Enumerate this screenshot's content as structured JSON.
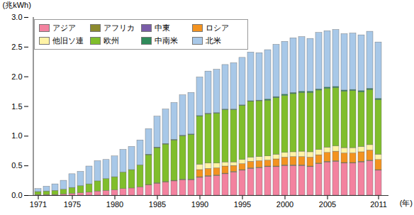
{
  "chart_data": {
    "type": "bar",
    "stacked": true,
    "y_label": "(兆kWh)",
    "x_label": "(年)",
    "x": [
      1971,
      1972,
      1973,
      1974,
      1975,
      1976,
      1977,
      1978,
      1979,
      1980,
      1981,
      1982,
      1983,
      1984,
      1985,
      1986,
      1987,
      1988,
      1989,
      1990,
      1991,
      1992,
      1993,
      1994,
      1995,
      1996,
      1997,
      1998,
      1999,
      2000,
      2001,
      2002,
      2003,
      2004,
      2005,
      2006,
      2007,
      2008,
      2009,
      2010,
      2011
    ],
    "xticks": [
      1971,
      1975,
      1980,
      1985,
      1990,
      1995,
      2000,
      2005,
      2011
    ],
    "ylim": [
      0,
      3
    ],
    "yticks": [
      {
        "value": 0,
        "label": "0.0"
      },
      0.5,
      {
        "value": 1,
        "label": "1.0"
      },
      1.5,
      {
        "value": 2,
        "label": "2.0"
      },
      2.5,
      {
        "value": 3,
        "label": "3.0"
      }
    ],
    "legend": "top-left",
    "series": [
      {
        "name": "アジア",
        "color": "#f3829f",
        "values": [
          0.01,
          0.01,
          0.01,
          0.02,
          0.03,
          0.04,
          0.05,
          0.07,
          0.08,
          0.09,
          0.11,
          0.12,
          0.14,
          0.17,
          0.2,
          0.22,
          0.24,
          0.26,
          0.26,
          0.3,
          0.32,
          0.33,
          0.36,
          0.39,
          0.42,
          0.45,
          0.46,
          0.48,
          0.48,
          0.5,
          0.5,
          0.5,
          0.48,
          0.53,
          0.56,
          0.57,
          0.54,
          0.54,
          0.56,
          0.58,
          0.42
        ]
      },
      {
        "name": "アフリカ",
        "color": "#8c8a2e",
        "values": [
          0,
          0,
          0,
          0,
          0,
          0,
          0,
          0,
          0,
          0,
          0,
          0,
          0,
          0.01,
          0.01,
          0.01,
          0.01,
          0.01,
          0.01,
          0.01,
          0.01,
          0.01,
          0.01,
          0.01,
          0.01,
          0.01,
          0.01,
          0.01,
          0.01,
          0.01,
          0.01,
          0.01,
          0.01,
          0.01,
          0.01,
          0.01,
          0.01,
          0.01,
          0.01,
          0.01,
          0.01
        ]
      },
      {
        "name": "中東",
        "color": "#7a5ca8",
        "values": [
          0,
          0,
          0,
          0,
          0,
          0,
          0,
          0,
          0,
          0,
          0,
          0,
          0,
          0,
          0,
          0,
          0,
          0,
          0,
          0,
          0,
          0,
          0,
          0,
          0,
          0,
          0,
          0,
          0,
          0,
          0,
          0,
          0,
          0,
          0,
          0,
          0,
          0,
          0,
          0,
          0
        ]
      },
      {
        "name": "ロシア",
        "color": "#f39320",
        "values": [
          0,
          0,
          0,
          0,
          0,
          0,
          0,
          0,
          0,
          0,
          0,
          0,
          0,
          0,
          0,
          0,
          0,
          0,
          0,
          0.12,
          0.12,
          0.12,
          0.12,
          0.1,
          0.1,
          0.11,
          0.11,
          0.1,
          0.12,
          0.13,
          0.14,
          0.14,
          0.15,
          0.14,
          0.15,
          0.16,
          0.16,
          0.16,
          0.16,
          0.17,
          0.17
        ]
      },
      {
        "name": "他旧ソ連",
        "color": "#fff3a6",
        "values": [
          0,
          0,
          0,
          0,
          0,
          0,
          0,
          0,
          0,
          0,
          0,
          0,
          0,
          0,
          0,
          0,
          0,
          0,
          0,
          0.09,
          0.09,
          0.08,
          0.07,
          0.06,
          0.07,
          0.07,
          0.07,
          0.07,
          0.08,
          0.08,
          0.08,
          0.09,
          0.09,
          0.09,
          0.09,
          0.09,
          0.09,
          0.09,
          0.09,
          0.09,
          0.09
        ]
      },
      {
        "name": "欧州",
        "color": "#80be2c",
        "values": [
          0.05,
          0.06,
          0.07,
          0.08,
          0.1,
          0.12,
          0.14,
          0.17,
          0.2,
          0.22,
          0.28,
          0.31,
          0.37,
          0.5,
          0.59,
          0.63,
          0.68,
          0.73,
          0.75,
          0.81,
          0.83,
          0.84,
          0.88,
          0.88,
          0.91,
          0.94,
          0.94,
          0.94,
          0.95,
          0.96,
          0.98,
          0.99,
          1.0,
          1.0,
          0.99,
          0.98,
          0.95,
          0.96,
          0.92,
          0.93,
          0.92
        ]
      },
      {
        "name": "中南米",
        "color": "#2f8a5a",
        "values": [
          0,
          0,
          0,
          0,
          0,
          0,
          0,
          0,
          0,
          0,
          0,
          0,
          0,
          0.01,
          0.01,
          0.01,
          0.01,
          0.01,
          0.01,
          0.01,
          0.01,
          0.01,
          0.01,
          0.01,
          0.01,
          0.01,
          0.01,
          0.02,
          0.02,
          0.02,
          0.02,
          0.02,
          0.02,
          0.02,
          0.02,
          0.02,
          0.02,
          0.02,
          0.02,
          0.02,
          0.02
        ]
      },
      {
        "name": "北米",
        "color": "#a8c8e8",
        "values": [
          0.05,
          0.08,
          0.11,
          0.15,
          0.23,
          0.24,
          0.3,
          0.34,
          0.32,
          0.35,
          0.38,
          0.39,
          0.42,
          0.43,
          0.52,
          0.58,
          0.62,
          0.68,
          0.7,
          0.65,
          0.71,
          0.73,
          0.75,
          0.78,
          0.8,
          0.82,
          0.8,
          0.83,
          0.88,
          0.89,
          0.92,
          0.92,
          0.89,
          0.95,
          0.95,
          0.96,
          0.95,
          0.95,
          0.94,
          0.96,
          0.95
        ]
      }
    ]
  }
}
